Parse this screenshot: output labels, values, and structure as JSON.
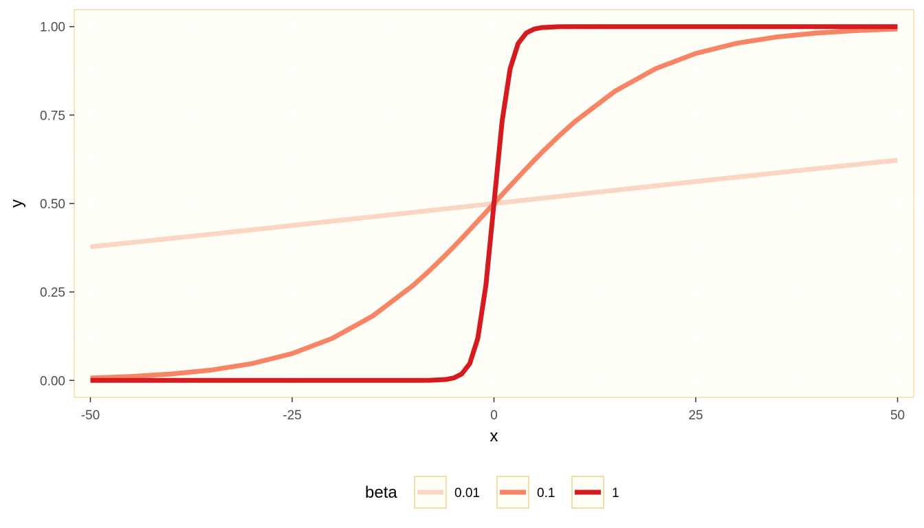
{
  "chart_data": {
    "type": "line",
    "title": "",
    "xlabel": "x",
    "ylabel": "y",
    "xlim": [
      -52,
      52
    ],
    "ylim": [
      -0.048,
      1.048
    ],
    "x_ticks": [
      -50,
      -25,
      0,
      25,
      50
    ],
    "x_tick_labels": [
      "-50",
      "-25",
      "0",
      "25",
      "50"
    ],
    "y_ticks": [
      0,
      0.25,
      0.5,
      0.75,
      1
    ],
    "y_tick_labels": [
      "0.00",
      "0.25",
      "0.50",
      "0.75",
      "1.00"
    ],
    "grid": true,
    "legend": {
      "title": "beta",
      "position": "bottom"
    },
    "x": [
      -50,
      -45,
      -40,
      -35,
      -30,
      -25,
      -20,
      -15,
      -10,
      -8,
      -6,
      -5,
      -4,
      -3,
      -2,
      -1,
      0,
      1,
      2,
      3,
      4,
      5,
      6,
      8,
      10,
      15,
      20,
      25,
      30,
      35,
      40,
      45,
      50
    ],
    "series": [
      {
        "name": "0.01",
        "color": "#fcd5c5",
        "values": [
          0.3775,
          0.3894,
          0.4013,
          0.4134,
          0.4256,
          0.4378,
          0.4502,
          0.4626,
          0.475,
          0.48,
          0.485,
          0.4875,
          0.49,
          0.4925,
          0.495,
          0.4975,
          0.5,
          0.5025,
          0.505,
          0.5075,
          0.51,
          0.5125,
          0.515,
          0.52,
          0.525,
          0.5374,
          0.5498,
          0.5622,
          0.5744,
          0.5866,
          0.5987,
          0.6106,
          0.6225
        ]
      },
      {
        "name": "0.1",
        "color": "#f88466",
        "values": [
          0.0067,
          0.011,
          0.018,
          0.0293,
          0.0474,
          0.0759,
          0.1192,
          0.1824,
          0.2689,
          0.31,
          0.3543,
          0.3775,
          0.4013,
          0.4256,
          0.4502,
          0.475,
          0.5,
          0.525,
          0.5498,
          0.5744,
          0.5987,
          0.6225,
          0.6457,
          0.69,
          0.7311,
          0.8176,
          0.8808,
          0.9241,
          0.9526,
          0.9707,
          0.982,
          0.989,
          0.9933
        ]
      },
      {
        "name": "1",
        "color": "#d51b20",
        "values": [
          0.0,
          0.0,
          0.0,
          0.0,
          0.0,
          0.0,
          0.0,
          0.0,
          5e-05,
          0.0003,
          0.0025,
          0.0067,
          0.018,
          0.0474,
          0.1192,
          0.2689,
          0.5,
          0.7311,
          0.8808,
          0.9526,
          0.982,
          0.9933,
          0.9975,
          0.9997,
          0.99995,
          1.0,
          1.0,
          1.0,
          1.0,
          1.0,
          1.0,
          1.0,
          1.0
        ]
      }
    ]
  },
  "colors": {
    "panel_background": "#fffff7",
    "panel_border": "#f2dcaa",
    "grid_major": "#ffffff",
    "axis_tick": "#333333",
    "legend_key_border": "#f2dcaa"
  }
}
